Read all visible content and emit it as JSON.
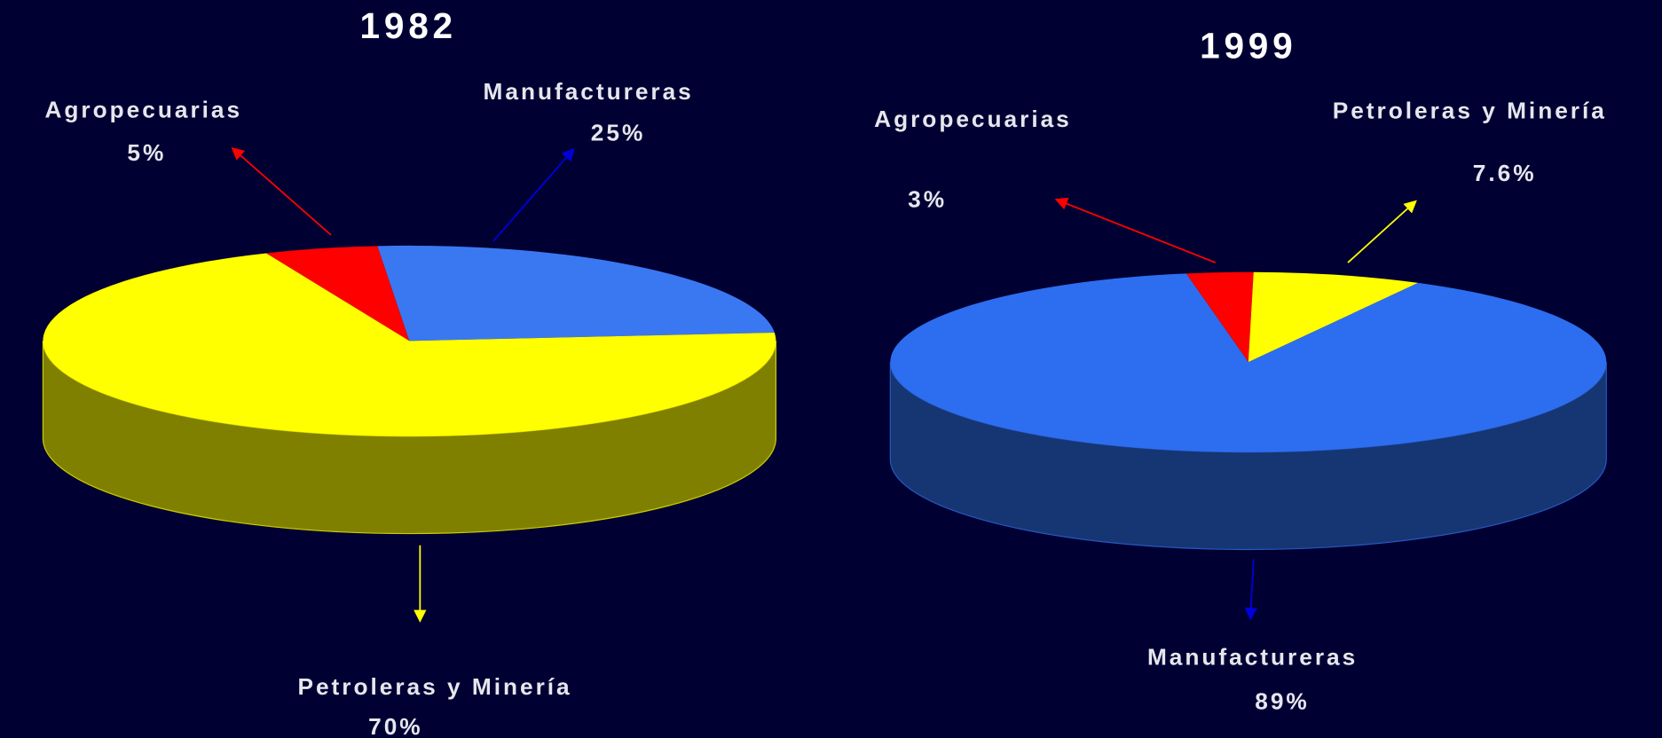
{
  "chart_data": [
    {
      "type": "pie3d",
      "title": "1982",
      "categories": [
        "Agropecuarias",
        "Manufactureras",
        "Petroleras y Minería"
      ],
      "values": [
        5,
        25,
        70
      ],
      "value_labels": [
        "5%",
        "25%",
        "70%"
      ],
      "colors": [
        "#ff0000",
        "#3a78f2",
        "#ffff00"
      ]
    },
    {
      "type": "pie3d",
      "title": "1999",
      "categories": [
        "Agropecuarias",
        "Petroleras y Minería",
        "Manufactureras"
      ],
      "values": [
        3,
        7.6,
        89
      ],
      "value_labels": [
        "3%",
        "7.6%",
        "89%"
      ],
      "colors": [
        "#ff0000",
        "#ffff00",
        "#2d6ef0"
      ]
    }
  ]
}
